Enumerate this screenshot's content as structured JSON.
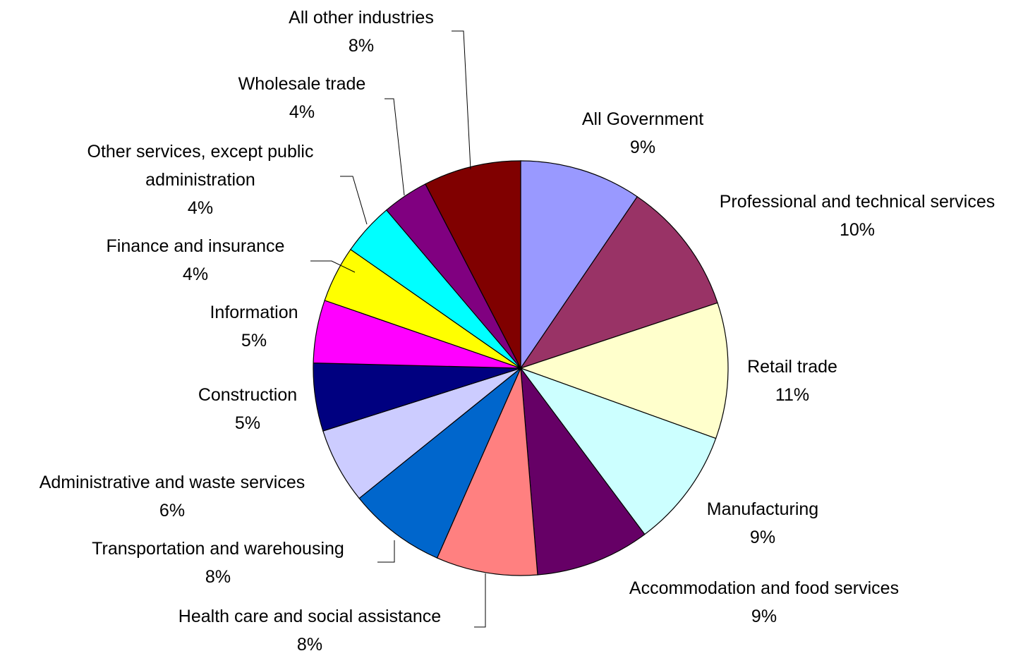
{
  "chart_data": {
    "type": "pie",
    "title": "",
    "slices": [
      {
        "label_lines": [
          "All Government"
        ],
        "percent_label": "9%",
        "value": 9.5,
        "color": "#9999FF"
      },
      {
        "label_lines": [
          "Professional and technical services"
        ],
        "percent_label": "10%",
        "value": 10.4,
        "color": "#993366"
      },
      {
        "label_lines": [
          "Retail trade"
        ],
        "percent_label": "11%",
        "value": 10.6,
        "color": "#FFFFCC"
      },
      {
        "label_lines": [
          "Manufacturing"
        ],
        "percent_label": "9%",
        "value": 9.3,
        "color": "#CCFFFF"
      },
      {
        "label_lines": [
          "Accommodation and food services"
        ],
        "percent_label": "9%",
        "value": 8.9,
        "color": "#660066"
      },
      {
        "label_lines": [
          "Health care and social assistance"
        ],
        "percent_label": "8%",
        "value": 7.9,
        "color": "#FF8080"
      },
      {
        "label_lines": [
          "Transportation and warehousing"
        ],
        "percent_label": "8%",
        "value": 7.6,
        "color": "#0066CC"
      },
      {
        "label_lines": [
          "Administrative and waste services"
        ],
        "percent_label": "6%",
        "value": 5.9,
        "color": "#CCCCFF"
      },
      {
        "label_lines": [
          "Construction"
        ],
        "percent_label": "5%",
        "value": 5.3,
        "color": "#000080"
      },
      {
        "label_lines": [
          "Information"
        ],
        "percent_label": "5%",
        "value": 4.9,
        "color": "#FF00FF"
      },
      {
        "label_lines": [
          "Finance and insurance"
        ],
        "percent_label": "4%",
        "value": 4.4,
        "color": "#FFFF00"
      },
      {
        "label_lines": [
          "Other services, except public",
          "administration"
        ],
        "percent_label": "4%",
        "value": 4.1,
        "color": "#00FFFF"
      },
      {
        "label_lines": [
          "Wholesale trade"
        ],
        "percent_label": "4%",
        "value": 3.6,
        "color": "#800080"
      },
      {
        "label_lines": [
          "All other industries"
        ],
        "percent_label": "8%",
        "value": 7.6,
        "color": "#800000"
      }
    ]
  }
}
